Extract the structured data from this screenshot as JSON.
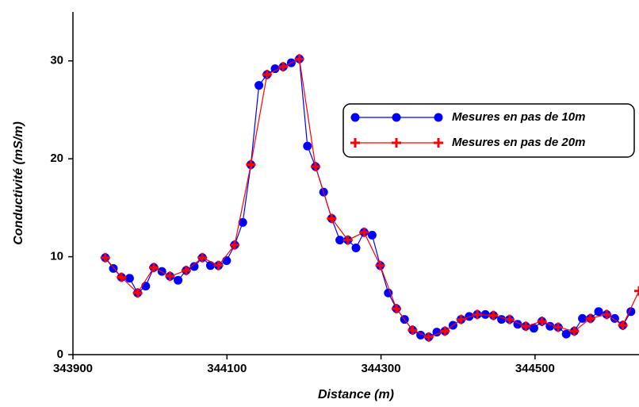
{
  "chart_data": {
    "type": "line",
    "xlabel": "Distance (m)",
    "ylabel": "Conductivité (mS/m)",
    "xlim": [
      343900,
      344635
    ],
    "xticks": [
      343900,
      344100,
      344300,
      344500
    ],
    "ylim": [
      0,
      35
    ],
    "yticks": [
      0,
      10,
      20,
      30
    ],
    "legend": "upper right",
    "series": [
      {
        "name": "Mesures en pas de 10m",
        "color": "#0000ff",
        "marker": "circle",
        "x": [
          343942,
          343952.5,
          343963,
          343973.5,
          343984,
          343994.5,
          344005,
          344015.5,
          344026,
          344036.5,
          344047,
          344057.5,
          344068,
          344078.5,
          344089,
          344099.5,
          344110,
          344120.5,
          344131,
          344141.5,
          344152,
          344162.5,
          344173,
          344183.5,
          344194,
          344204.5,
          344215,
          344225.5,
          344236,
          344246.5,
          344257,
          344267.5,
          344278,
          344288.5,
          344299,
          344309.5,
          344320,
          344330.5,
          344341,
          344351.5,
          344362,
          344372.5,
          344383,
          344393.5,
          344404,
          344414.5,
          344425,
          344435.5,
          344446,
          344456.5,
          344467,
          344477.5,
          344488,
          344498.5,
          344509,
          344519.5,
          344530,
          344540.5,
          344551,
          344561.5,
          344572,
          344582.5,
          344593,
          344603.5,
          344614,
          344624.5
        ],
        "values": [
          9.9,
          8.8,
          7.9,
          7.8,
          6.3,
          7.0,
          8.9,
          8.5,
          8.0,
          7.6,
          8.6,
          9.0,
          9.9,
          9.1,
          9.1,
          9.6,
          11.2,
          13.5,
          19.4,
          27.5,
          28.6,
          29.2,
          29.4,
          29.8,
          30.2,
          21.3,
          19.2,
          16.6,
          13.9,
          11.7,
          11.7,
          10.9,
          12.5,
          12.2,
          9.1,
          6.3,
          4.7,
          3.6,
          2.5,
          2.0,
          1.8,
          2.3,
          2.4,
          3.0,
          3.6,
          3.9,
          4.1,
          4.1,
          4.0,
          3.6,
          3.6,
          3.1,
          2.9,
          2.7,
          3.4,
          2.9,
          2.8,
          2.1,
          2.4,
          3.7,
          3.7,
          4.4,
          4.1,
          3.7,
          3.0,
          4.4
        ]
      },
      {
        "name": "Mesures en pas de 20m",
        "color": "#ff0000",
        "marker": "plus",
        "x": [
          343942,
          343963,
          343984,
          344005,
          344026,
          344047,
          344068,
          344089,
          344110,
          344131,
          344152,
          344173,
          344194,
          344215,
          344236,
          344257,
          344278,
          344299,
          344320,
          344341,
          344362,
          344383,
          344404,
          344425,
          344446,
          344467,
          344488,
          344509,
          344530,
          344551,
          344572,
          344593,
          344614,
          344635
        ],
        "values": [
          9.9,
          7.9,
          6.3,
          8.9,
          8.0,
          8.6,
          9.9,
          9.1,
          11.2,
          19.4,
          28.6,
          29.4,
          30.2,
          19.2,
          13.9,
          11.7,
          12.5,
          9.1,
          4.7,
          2.5,
          1.8,
          2.4,
          3.6,
          4.1,
          4.0,
          3.6,
          2.9,
          3.4,
          2.8,
          2.4,
          3.7,
          4.1,
          3.0,
          6.5
        ]
      }
    ]
  }
}
